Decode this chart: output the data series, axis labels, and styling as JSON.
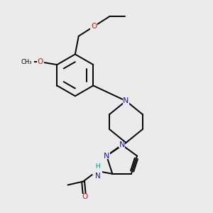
{
  "bg_color": "#ebebeb",
  "bond_color": "#000000",
  "N_color": "#1414cc",
  "O_color": "#cc1414",
  "H_color": "#008b8b",
  "lw": 1.4,
  "figsize": [
    3.0,
    3.0
  ],
  "dpi": 100,
  "xlim": [
    0,
    3.0
  ],
  "ylim": [
    0,
    3.0
  ]
}
